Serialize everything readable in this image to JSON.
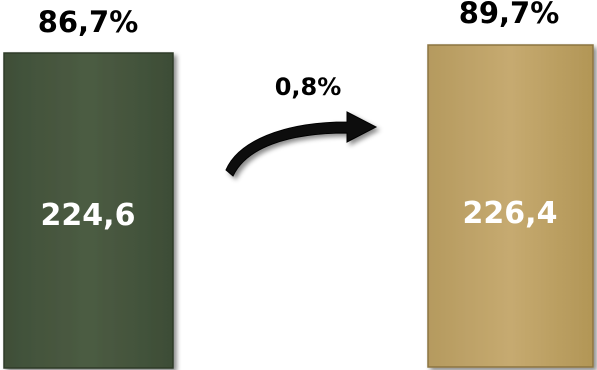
{
  "chart_data": {
    "type": "bar",
    "categories": [
      "",
      ""
    ],
    "values": [
      224.6,
      226.4
    ],
    "value_labels": [
      "224,6",
      "226,4"
    ],
    "top_labels": [
      "86,7%",
      "89,7%"
    ],
    "change_label": "0,8%",
    "colors": [
      "#4a5a41",
      "#c2a66b"
    ],
    "title": "",
    "xlabel": "",
    "ylabel": ""
  }
}
